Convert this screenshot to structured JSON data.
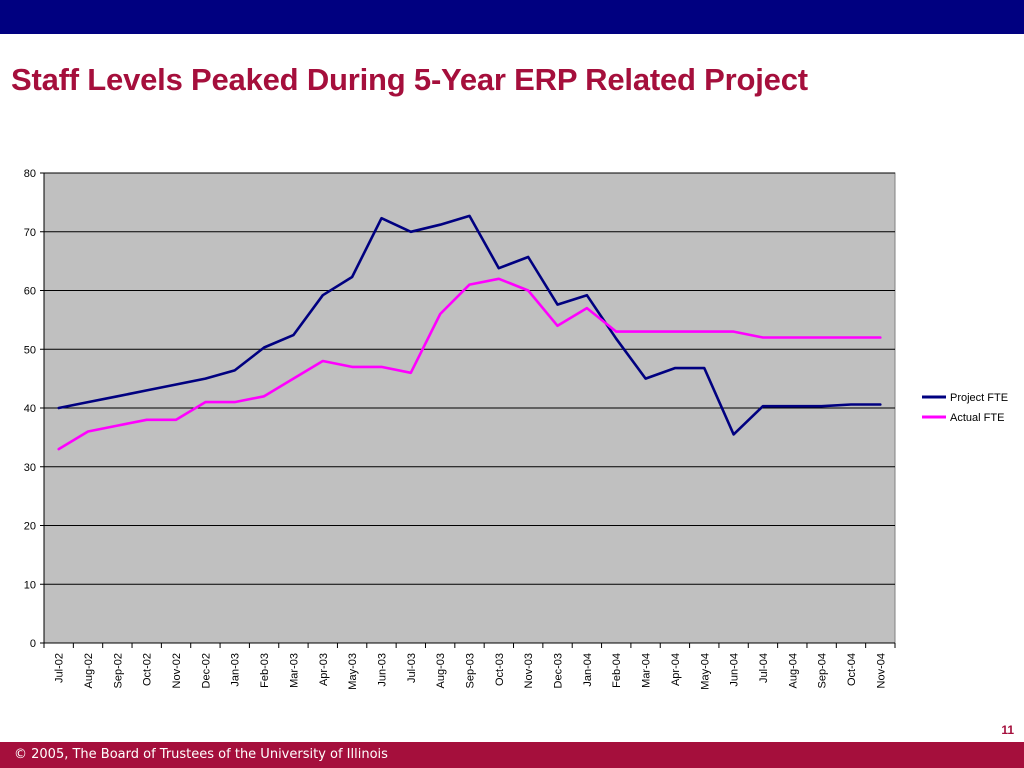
{
  "slide": {
    "title": "Staff Levels Peaked During 5-Year ERP Related Project",
    "page_number": "11",
    "footer": "© 2005, The Board of Trustees of the University of Illinois",
    "colors": {
      "top_bar": "#000080",
      "title": "#a50f3c",
      "footer_bar": "#a50f3c",
      "plot_background": "#c0c0c0"
    }
  },
  "chart_data": {
    "type": "line",
    "categories": [
      "Jul-02",
      "Aug-02",
      "Sep-02",
      "Oct-02",
      "Nov-02",
      "Dec-02",
      "Jan-03",
      "Feb-03",
      "Mar-03",
      "Apr-03",
      "May-03",
      "Jun-03",
      "Jul-03",
      "Aug-03",
      "Sep-03",
      "Oct-03",
      "Nov-03",
      "Dec-03",
      "Jan-04",
      "Feb-04",
      "Mar-04",
      "Apr-04",
      "May-04",
      "Jun-04",
      "Jul-04",
      "Aug-04",
      "Sep-04",
      "Oct-04",
      "Nov-04"
    ],
    "series": [
      {
        "name": "Project FTE",
        "color": "#000080",
        "values": [
          40,
          41,
          42,
          43,
          44,
          45,
          46.4,
          50.3,
          52.4,
          59.2,
          62.3,
          72.3,
          70,
          71.2,
          72.7,
          63.8,
          65.7,
          57.6,
          59.2,
          51.8,
          45,
          46.8,
          46.8,
          35.5,
          40.3,
          40.3,
          40.3,
          40.6,
          40.6
        ]
      },
      {
        "name": "Actual FTE",
        "color": "#ff00ff",
        "values": [
          33,
          36,
          37,
          38,
          38,
          41,
          41,
          42,
          45,
          48,
          47,
          47,
          46,
          56,
          61,
          62,
          60,
          54,
          57,
          53,
          53,
          53,
          53,
          53,
          52,
          52,
          52,
          52,
          52
        ]
      }
    ],
    "ylim": [
      0,
      80
    ],
    "yticks": [
      0,
      10,
      20,
      30,
      40,
      50,
      60,
      70,
      80
    ],
    "xlabel": "",
    "ylabel": "",
    "grid": true,
    "legend": "right"
  }
}
